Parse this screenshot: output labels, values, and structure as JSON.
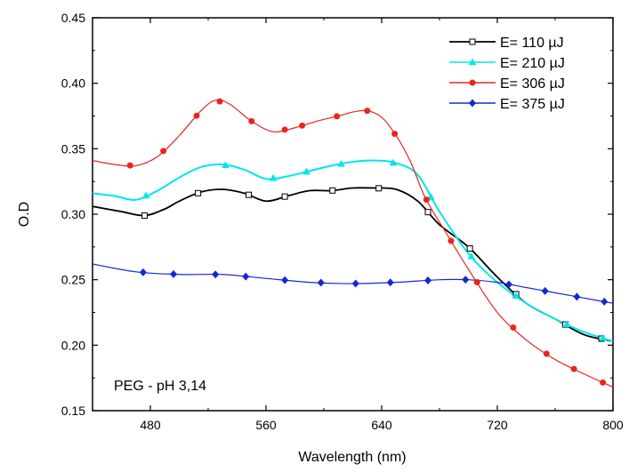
{
  "chart_data": {
    "type": "line",
    "xlabel": "Wavelength (nm)",
    "ylabel": "O.D",
    "xlim": [
      440,
      800
    ],
    "ylim": [
      0.15,
      0.45
    ],
    "xticks": [
      480,
      560,
      640,
      720,
      800
    ],
    "yticks": [
      0.15,
      0.2,
      0.25,
      0.3,
      0.35,
      0.4,
      0.45
    ],
    "ytick_labels": [
      "0.15",
      "0.20",
      "0.25",
      "0.30",
      "0.35",
      "0.40",
      "0.45"
    ],
    "annotation": "PEG - pH 3,14",
    "legend_position": "top-right",
    "grid": false,
    "series": [
      {
        "name": "E= 110 µJ",
        "color": "#000000",
        "marker": "square-open",
        "x": [
          440,
          460,
          476,
          490,
          500,
          515,
          530,
          545,
          560,
          575,
          590,
          605,
          620,
          635,
          650,
          665,
          680,
          700,
          720,
          740,
          760,
          780,
          800
        ],
        "y": [
          0.306,
          0.302,
          0.299,
          0.304,
          0.31,
          0.317,
          0.319,
          0.316,
          0.31,
          0.314,
          0.318,
          0.318,
          0.32,
          0.32,
          0.319,
          0.31,
          0.292,
          0.275,
          0.252,
          0.232,
          0.22,
          0.208,
          0.203
        ],
        "marker_x": [
          476,
          513,
          548,
          573,
          606,
          638,
          672,
          701,
          733,
          767,
          792
        ]
      },
      {
        "name": "E= 210 µJ",
        "color": "#00e5ee",
        "marker": "triangle",
        "x": [
          440,
          455,
          470,
          485,
          500,
          515,
          530,
          545,
          560,
          575,
          590,
          605,
          620,
          635,
          650,
          665,
          680,
          700,
          720,
          740,
          760,
          780,
          800
        ],
        "y": [
          0.316,
          0.314,
          0.311,
          0.318,
          0.328,
          0.336,
          0.338,
          0.334,
          0.327,
          0.329,
          0.333,
          0.337,
          0.34,
          0.341,
          0.339,
          0.33,
          0.302,
          0.27,
          0.248,
          0.232,
          0.22,
          0.21,
          0.203
        ],
        "marker_x": [
          477,
          532,
          565,
          588,
          612,
          648,
          674,
          702,
          733,
          768,
          793
        ]
      },
      {
        "name": "E= 306 µJ",
        "color": "#e8261e",
        "marker": "circle",
        "x": [
          440,
          455,
          470,
          485,
          500,
          515,
          525,
          535,
          550,
          565,
          580,
          595,
          610,
          620,
          630,
          640,
          650,
          660,
          670,
          685,
          700,
          720,
          740,
          760,
          780,
          800
        ],
        "y": [
          0.341,
          0.338,
          0.337,
          0.344,
          0.36,
          0.379,
          0.387,
          0.384,
          0.371,
          0.363,
          0.366,
          0.371,
          0.375,
          0.378,
          0.379,
          0.374,
          0.36,
          0.34,
          0.313,
          0.285,
          0.258,
          0.225,
          0.204,
          0.189,
          0.178,
          0.168
        ],
        "marker_x": [
          466,
          489,
          512,
          528,
          550,
          573,
          585,
          609,
          630,
          649,
          671,
          688,
          706,
          731,
          754,
          773,
          793
        ]
      },
      {
        "name": "E= 375 µJ",
        "color": "#1428d2",
        "marker": "diamond",
        "x": [
          440,
          470,
          500,
          530,
          560,
          590,
          620,
          650,
          680,
          700,
          720,
          740,
          760,
          780,
          800
        ],
        "y": [
          0.262,
          0.256,
          0.254,
          0.254,
          0.251,
          0.248,
          0.247,
          0.248,
          0.25,
          0.25,
          0.248,
          0.244,
          0.24,
          0.236,
          0.232
        ],
        "marker_x": [
          475,
          496,
          525,
          546,
          573,
          598,
          622,
          646,
          672,
          698,
          728,
          753,
          775,
          794
        ]
      }
    ]
  }
}
